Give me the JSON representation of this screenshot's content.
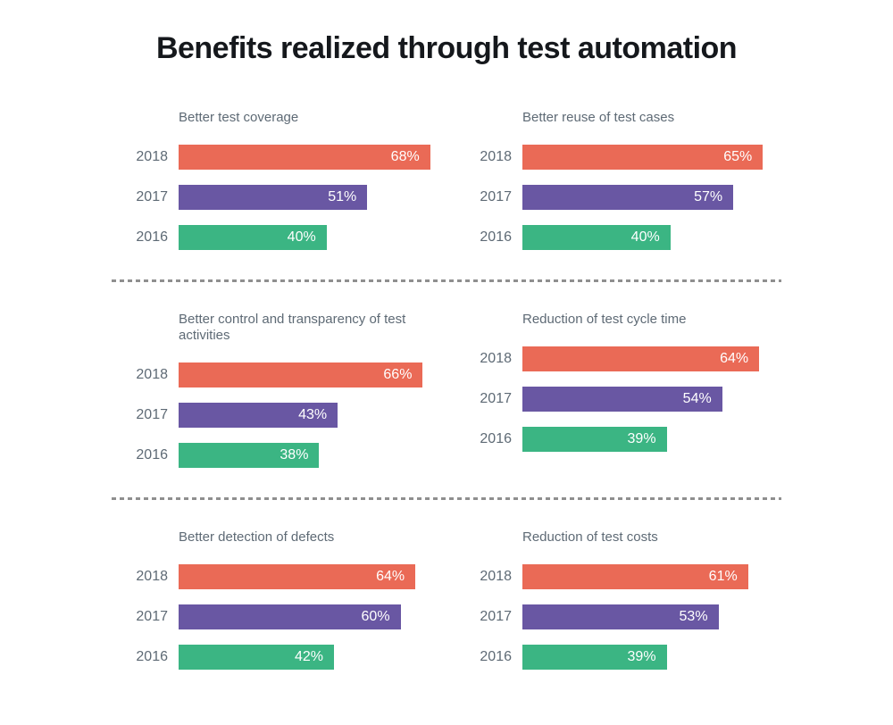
{
  "title": "Benefits realized through test automation",
  "colors": {
    "2018": "#EA6A56",
    "2017": "#6957A3",
    "2016": "#3BB583"
  },
  "text_colors": {
    "main_title": "#15181c",
    "chart_labels": "#5e6a75",
    "bar_value_labels": "#ffffff"
  },
  "chart_data": [
    {
      "type": "bar",
      "orientation": "horizontal",
      "title": "Better test coverage",
      "categories": [
        "2018",
        "2017",
        "2016"
      ],
      "values": [
        68,
        51,
        40
      ],
      "value_labels": [
        "68%",
        "51%",
        "40%"
      ],
      "xlim": [
        0,
        70
      ],
      "grid": false,
      "legend": false
    },
    {
      "type": "bar",
      "orientation": "horizontal",
      "title": "Better reuse of test cases",
      "categories": [
        "2018",
        "2017",
        "2016"
      ],
      "values": [
        65,
        57,
        40
      ],
      "value_labels": [
        "65%",
        "57%",
        "40%"
      ],
      "xlim": [
        0,
        70
      ],
      "grid": false,
      "legend": false
    },
    {
      "type": "bar",
      "orientation": "horizontal",
      "title": "Better control and transparency of test activities",
      "categories": [
        "2018",
        "2017",
        "2016"
      ],
      "values": [
        66,
        43,
        38
      ],
      "value_labels": [
        "66%",
        "43%",
        "38%"
      ],
      "xlim": [
        0,
        70
      ],
      "grid": false,
      "legend": false
    },
    {
      "type": "bar",
      "orientation": "horizontal",
      "title": "Reduction of test cycle time",
      "categories": [
        "2018",
        "2017",
        "2016"
      ],
      "values": [
        64,
        54,
        39
      ],
      "value_labels": [
        "64%",
        "54%",
        "39%"
      ],
      "xlim": [
        0,
        70
      ],
      "grid": false,
      "legend": false
    },
    {
      "type": "bar",
      "orientation": "horizontal",
      "title": "Better detection of defects",
      "categories": [
        "2018",
        "2017",
        "2016"
      ],
      "values": [
        64,
        60,
        42
      ],
      "value_labels": [
        "64%",
        "60%",
        "42%"
      ],
      "xlim": [
        0,
        70
      ],
      "grid": false,
      "legend": false
    },
    {
      "type": "bar",
      "orientation": "horizontal",
      "title": "Reduction of test costs",
      "categories": [
        "2018",
        "2017",
        "2016"
      ],
      "values": [
        61,
        53,
        39
      ],
      "value_labels": [
        "61%",
        "53%",
        "39%"
      ],
      "xlim": [
        0,
        70
      ],
      "grid": false,
      "legend": false
    }
  ]
}
